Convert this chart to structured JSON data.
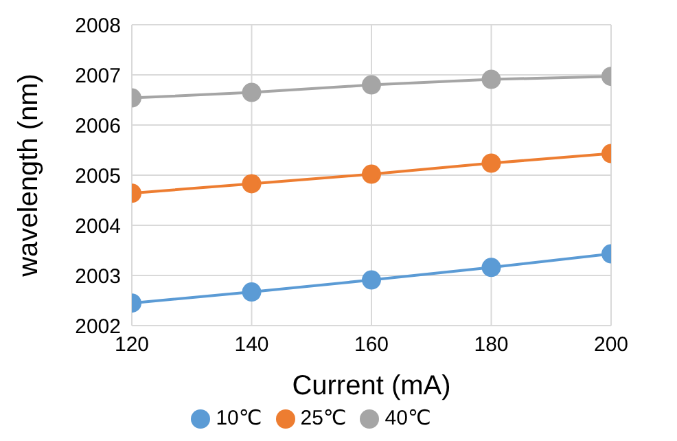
{
  "chart_data": {
    "type": "line",
    "xlabel": "Current (mA)",
    "ylabel": "wavelength (nm)",
    "x": [
      120,
      140,
      160,
      180,
      200
    ],
    "xlim": [
      120,
      200
    ],
    "xticks": [
      120,
      140,
      160,
      180,
      200
    ],
    "ylim": [
      2002,
      2008
    ],
    "yticks": [
      2002,
      2003,
      2004,
      2005,
      2006,
      2007,
      2008
    ],
    "grid": true,
    "legend": "bottom",
    "marker": "circle",
    "series": [
      {
        "name": "10℃",
        "color": "#5b9bd5",
        "values": [
          2002.45,
          2002.67,
          2002.91,
          2003.16,
          2003.43
        ]
      },
      {
        "name": "25℃",
        "color": "#ed7d31",
        "values": [
          2004.64,
          2004.83,
          2005.02,
          2005.24,
          2005.43
        ]
      },
      {
        "name": "40℃",
        "color": "#a5a5a5",
        "values": [
          2006.54,
          2006.65,
          2006.8,
          2006.91,
          2006.97
        ]
      }
    ]
  }
}
